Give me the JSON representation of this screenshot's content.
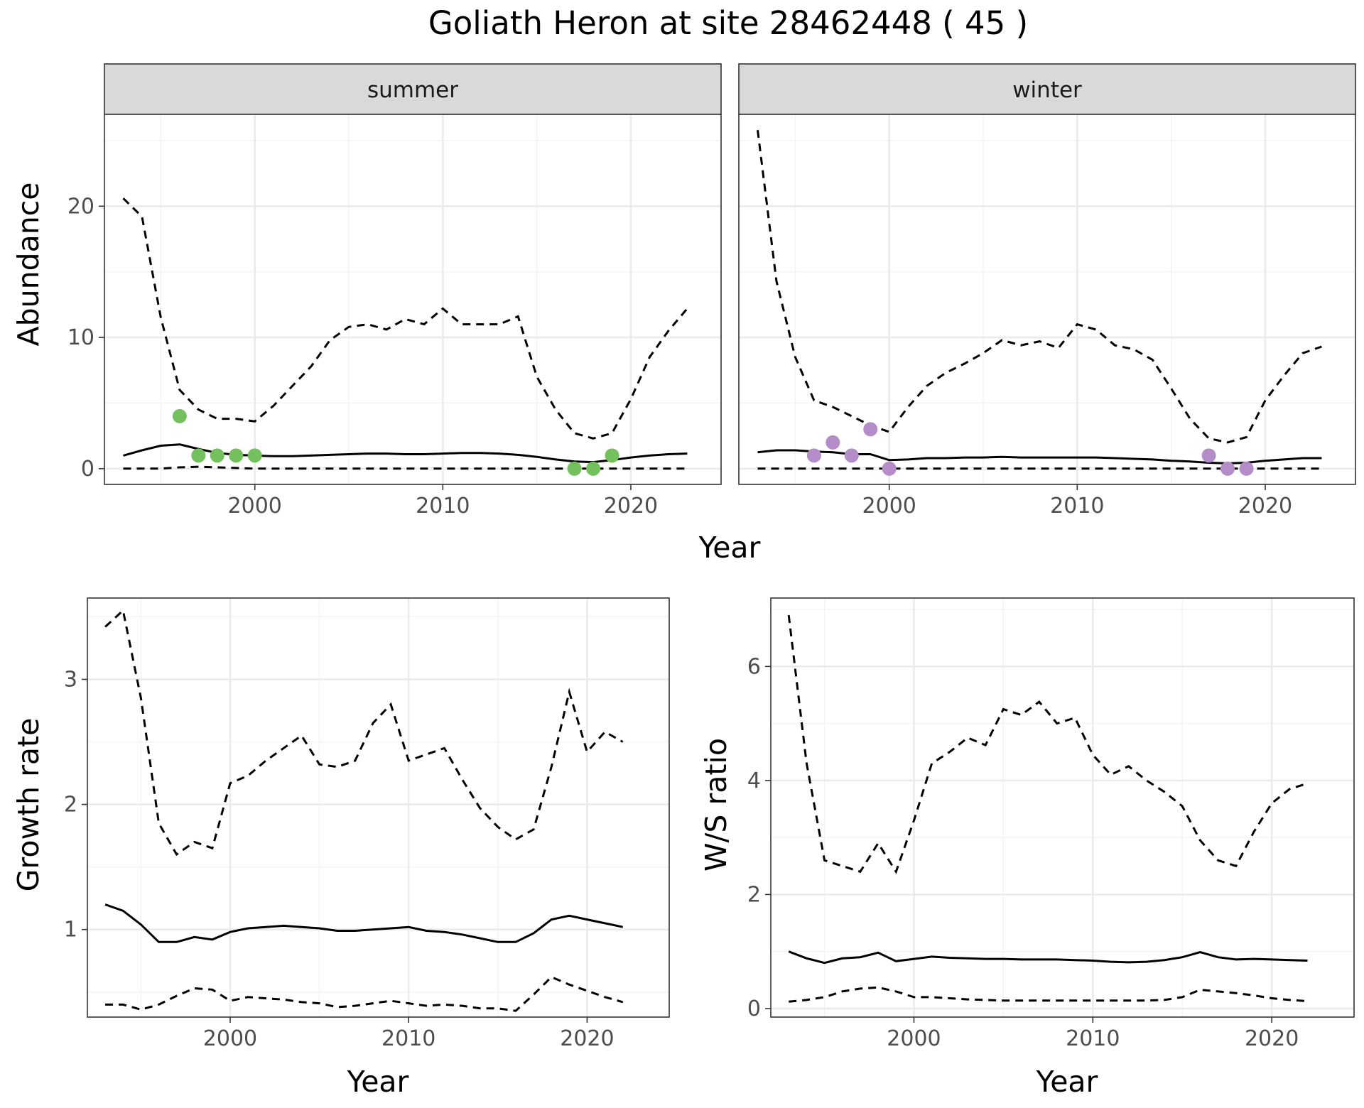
{
  "title": "Goliath Heron at site 28462448 ( 45 )",
  "colors": {
    "summer_points": "#74c05c",
    "winter_points": "#b48cc8",
    "lines": "#000000"
  },
  "chart_data": [
    {
      "type": "line",
      "panel": "summer",
      "strip_label": "summer",
      "xlabel": "Year",
      "ylabel": "Abundance",
      "xlim": [
        1992,
        2024.8
      ],
      "ylim": [
        -1.2,
        27
      ],
      "xticks": [
        2000,
        2010,
        2020
      ],
      "yticks": [
        0,
        10,
        20
      ],
      "x": [
        1993,
        1994,
        1995,
        1996,
        1997,
        1998,
        1999,
        2000,
        2001,
        2002,
        2003,
        2004,
        2005,
        2006,
        2007,
        2008,
        2009,
        2010,
        2011,
        2012,
        2013,
        2014,
        2015,
        2016,
        2017,
        2018,
        2019,
        2020,
        2021,
        2022,
        2023
      ],
      "series": [
        {
          "style": "solid",
          "values": [
            1.0,
            1.4,
            1.75,
            1.85,
            1.5,
            1.2,
            1.05,
            1.0,
            0.95,
            0.95,
            1.0,
            1.05,
            1.1,
            1.15,
            1.15,
            1.1,
            1.1,
            1.15,
            1.2,
            1.2,
            1.15,
            1.05,
            0.9,
            0.7,
            0.55,
            0.5,
            0.65,
            0.85,
            1.0,
            1.1,
            1.15
          ]
        },
        {
          "style": "dashed",
          "values": [
            20.6,
            19.2,
            11.5,
            6.0,
            4.5,
            3.8,
            3.8,
            3.6,
            4.8,
            6.3,
            7.8,
            9.8,
            10.8,
            11.0,
            10.6,
            11.4,
            11.0,
            12.2,
            11.0,
            11.0,
            11.0,
            11.6,
            7.0,
            4.5,
            2.7,
            2.3,
            2.7,
            5.3,
            8.5,
            10.5,
            12.2
          ]
        },
        {
          "style": "dashed",
          "values": [
            0,
            0,
            0,
            0.1,
            0.15,
            0.1,
            0.05,
            0,
            0,
            0,
            0,
            0,
            0,
            0,
            0,
            0,
            0,
            0,
            0,
            0,
            0,
            0,
            0,
            0,
            0,
            0,
            0,
            0,
            0,
            0,
            0
          ]
        }
      ],
      "points": {
        "x": [
          1996,
          1997,
          1998,
          1999,
          2000,
          2017,
          2018,
          2019
        ],
        "y": [
          4,
          1,
          1,
          1,
          1,
          0,
          0,
          1
        ]
      }
    },
    {
      "type": "line",
      "panel": "winter",
      "strip_label": "winter",
      "xlabel": "Year",
      "ylabel": "",
      "xlim": [
        1992,
        2024.8
      ],
      "ylim": [
        -1.2,
        27
      ],
      "xticks": [
        2000,
        2010,
        2020
      ],
      "yticks": [
        0,
        10,
        20
      ],
      "x": [
        1993,
        1994,
        1995,
        1996,
        1997,
        1998,
        1999,
        2000,
        2001,
        2002,
        2003,
        2004,
        2005,
        2006,
        2007,
        2008,
        2009,
        2010,
        2011,
        2012,
        2013,
        2014,
        2015,
        2016,
        2017,
        2018,
        2019,
        2020,
        2021,
        2022,
        2023
      ],
      "series": [
        {
          "style": "solid",
          "values": [
            1.25,
            1.4,
            1.4,
            1.3,
            1.25,
            1.1,
            1.1,
            0.65,
            0.7,
            0.8,
            0.8,
            0.85,
            0.85,
            0.9,
            0.85,
            0.85,
            0.85,
            0.85,
            0.85,
            0.8,
            0.75,
            0.7,
            0.6,
            0.55,
            0.45,
            0.4,
            0.45,
            0.6,
            0.7,
            0.8,
            0.8
          ]
        },
        {
          "style": "dashed",
          "values": [
            25.8,
            14.3,
            8.5,
            5.2,
            4.7,
            4.0,
            3.3,
            2.8,
            4.7,
            6.3,
            7.3,
            8.0,
            8.8,
            9.8,
            9.4,
            9.7,
            9.2,
            11.0,
            10.6,
            9.4,
            9.1,
            8.3,
            6.1,
            3.8,
            2.3,
            2.0,
            2.4,
            5.2,
            7.1,
            8.8,
            9.3
          ]
        },
        {
          "style": "dashed",
          "values": [
            0,
            0,
            0,
            0,
            0,
            0,
            0,
            0,
            0,
            0,
            0,
            0,
            0,
            0,
            0,
            0,
            0,
            0,
            0,
            0,
            0,
            0,
            0,
            0,
            0,
            0,
            0,
            0,
            0,
            0,
            0
          ]
        }
      ],
      "points": {
        "x": [
          1996,
          1997,
          1998,
          1999,
          2000,
          2017,
          2018,
          2019
        ],
        "y": [
          1,
          2,
          1,
          3,
          0,
          1,
          0,
          0
        ]
      }
    },
    {
      "type": "line",
      "panel": "growth",
      "xlabel": "Year",
      "ylabel": "Growth rate",
      "xlim": [
        1992,
        2024.6
      ],
      "ylim": [
        0.3,
        3.65
      ],
      "xticks": [
        2000,
        2010,
        2020
      ],
      "yticks": [
        1,
        2,
        3
      ],
      "x": [
        1993,
        1994,
        1995,
        1996,
        1997,
        1998,
        1999,
        2000,
        2001,
        2002,
        2003,
        2004,
        2005,
        2006,
        2007,
        2008,
        2009,
        2010,
        2011,
        2012,
        2013,
        2014,
        2015,
        2016,
        2017,
        2018,
        2019,
        2020,
        2021,
        2022
      ],
      "series": [
        {
          "style": "solid",
          "values": [
            1.2,
            1.15,
            1.04,
            0.9,
            0.9,
            0.94,
            0.92,
            0.98,
            1.01,
            1.02,
            1.03,
            1.02,
            1.01,
            0.99,
            0.99,
            1.0,
            1.01,
            1.02,
            0.99,
            0.98,
            0.96,
            0.93,
            0.9,
            0.9,
            0.97,
            1.08,
            1.11,
            1.08,
            1.05,
            1.02
          ]
        },
        {
          "style": "dashed",
          "values": [
            3.42,
            3.55,
            2.85,
            1.85,
            1.6,
            1.7,
            1.65,
            2.17,
            2.23,
            2.35,
            2.45,
            2.55,
            2.32,
            2.3,
            2.35,
            2.65,
            2.8,
            2.35,
            2.4,
            2.45,
            2.2,
            1.97,
            1.82,
            1.72,
            1.8,
            2.3,
            2.9,
            2.42,
            2.58,
            2.5
          ]
        },
        {
          "style": "dashed",
          "values": [
            0.4,
            0.4,
            0.36,
            0.4,
            0.47,
            0.53,
            0.52,
            0.43,
            0.46,
            0.45,
            0.44,
            0.42,
            0.41,
            0.38,
            0.39,
            0.41,
            0.43,
            0.41,
            0.39,
            0.4,
            0.39,
            0.37,
            0.37,
            0.35,
            0.48,
            0.62,
            0.56,
            0.51,
            0.46,
            0.42
          ]
        }
      ]
    },
    {
      "type": "line",
      "panel": "ws_ratio",
      "xlabel": "Year",
      "ylabel": "W/S ratio",
      "xlim": [
        1992,
        2024.6
      ],
      "ylim": [
        -0.15,
        7.2
      ],
      "xticks": [
        2000,
        2010,
        2020
      ],
      "yticks": [
        0,
        2,
        4,
        6
      ],
      "x": [
        1993,
        1994,
        1995,
        1996,
        1997,
        1998,
        1999,
        2000,
        2001,
        2002,
        2003,
        2004,
        2005,
        2006,
        2007,
        2008,
        2009,
        2010,
        2011,
        2012,
        2013,
        2014,
        2015,
        2016,
        2017,
        2018,
        2019,
        2020,
        2021,
        2022
      ],
      "series": [
        {
          "style": "solid",
          "values": [
            1.0,
            0.88,
            0.8,
            0.88,
            0.9,
            0.98,
            0.83,
            0.87,
            0.91,
            0.89,
            0.88,
            0.87,
            0.87,
            0.86,
            0.86,
            0.86,
            0.85,
            0.84,
            0.82,
            0.81,
            0.82,
            0.85,
            0.9,
            0.99,
            0.9,
            0.86,
            0.87,
            0.86,
            0.85,
            0.84
          ]
        },
        {
          "style": "dashed",
          "values": [
            6.9,
            4.3,
            2.6,
            2.5,
            2.4,
            2.9,
            2.4,
            3.3,
            4.3,
            4.5,
            4.75,
            4.62,
            5.25,
            5.15,
            5.38,
            5.0,
            5.1,
            4.45,
            4.1,
            4.25,
            4.0,
            3.8,
            3.55,
            2.95,
            2.6,
            2.5,
            3.1,
            3.6,
            3.85,
            3.95
          ]
        },
        {
          "style": "dashed",
          "values": [
            0.12,
            0.15,
            0.2,
            0.3,
            0.35,
            0.37,
            0.3,
            0.2,
            0.2,
            0.18,
            0.16,
            0.15,
            0.14,
            0.14,
            0.14,
            0.14,
            0.14,
            0.14,
            0.14,
            0.14,
            0.14,
            0.15,
            0.2,
            0.33,
            0.3,
            0.27,
            0.23,
            0.18,
            0.15,
            0.13
          ]
        }
      ]
    }
  ]
}
